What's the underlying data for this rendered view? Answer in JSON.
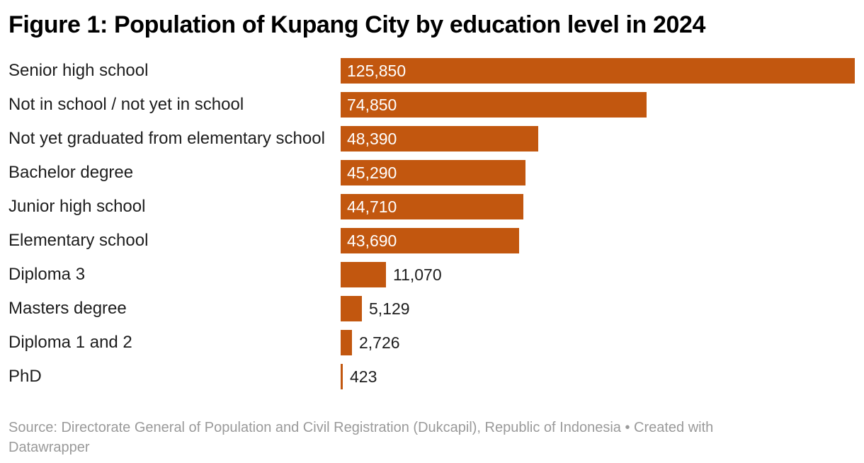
{
  "header": {
    "title": "Figure 1: Population of Kupang City by education level in 2024"
  },
  "chart_data": {
    "type": "bar",
    "orientation": "horizontal",
    "title": "Figure 1: Population of Kupang City by education level in 2024",
    "xlabel": "",
    "ylabel": "",
    "xlim": [
      0,
      125850
    ],
    "grid": false,
    "legend": false,
    "categories": [
      "Senior high school",
      "Not in school / not yet in school",
      "Not yet graduated from elementary school",
      "Bachelor degree",
      "Junior high school",
      "Elementary school",
      "Diploma 3",
      "Masters degree",
      "Diploma 1 and 2",
      "PhD"
    ],
    "values": [
      125850,
      74850,
      48390,
      45290,
      44710,
      43690,
      11070,
      5129,
      2726,
      423
    ],
    "value_labels": [
      "125,850",
      "74,850",
      "48,390",
      "45,290",
      "44,710",
      "43,690",
      "11,070",
      "5,129",
      "2,726",
      "423"
    ],
    "bar_color": "#C2570F",
    "value_label_inside_color": "#FFFFFF",
    "value_label_outside_color": "#1D1D1D",
    "category_label_color": "#1D1D1D"
  },
  "footer": {
    "line1": "Source: Directorate General of Population and Civil Registration (Dukcapil), Republic of Indonesia • Created with",
    "line2": "Datawrapper"
  }
}
